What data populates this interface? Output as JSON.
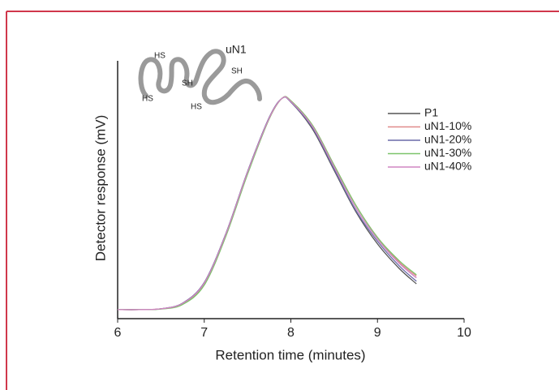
{
  "chart_data": {
    "type": "line",
    "x_label": "Retention time (minutes)",
    "y_label": "Detector response (mV)",
    "annotations": [
      "uN1",
      "HS",
      "SH",
      "SH",
      "HS",
      "HS"
    ],
    "x": [
      6,
      6.25,
      6.5,
      6.75,
      7,
      7.25,
      7.5,
      7.75,
      7.9,
      8,
      8.25,
      8.5,
      8.75,
      9,
      9.25,
      9.45
    ],
    "series": [
      {
        "name": "P1",
        "color": "#555555",
        "values": [
          3.5,
          3.5,
          3.8,
          6,
          14,
          33,
          57,
          78,
          85.5,
          84,
          73.5,
          57.5,
          41.5,
          29,
          19.5,
          13.5
        ]
      },
      {
        "name": "uN1-10%",
        "color": "#e08a8a",
        "values": [
          3.5,
          3.5,
          3.8,
          5.8,
          13.5,
          32.5,
          56.5,
          77.5,
          85.5,
          84.5,
          75,
          59.5,
          44,
          31.5,
          22,
          16.5
        ]
      },
      {
        "name": "uN1-20%",
        "color": "#6a6aa8",
        "values": [
          3.5,
          3.5,
          3.8,
          6,
          14,
          33,
          57,
          78,
          85.5,
          84,
          74,
          58,
          42,
          30,
          20.5,
          14.5
        ]
      },
      {
        "name": "uN1-30%",
        "color": "#7cc46a",
        "values": [
          3.5,
          3.5,
          3.7,
          5.5,
          13,
          32,
          56,
          77.5,
          85.5,
          84.5,
          75,
          59.5,
          44,
          31.5,
          22.5,
          17
        ]
      },
      {
        "name": "uN1-40%",
        "color": "#d085c2",
        "values": [
          3.5,
          3.5,
          3.8,
          5.9,
          13.8,
          32.8,
          56.8,
          77.8,
          85.5,
          84.2,
          74.5,
          58.8,
          43,
          30.8,
          21.5,
          15.8
        ]
      }
    ],
    "xlim": [
      6,
      10
    ],
    "xticks": [
      6,
      7,
      8,
      9,
      10
    ],
    "ylim": [
      0,
      100
    ]
  }
}
